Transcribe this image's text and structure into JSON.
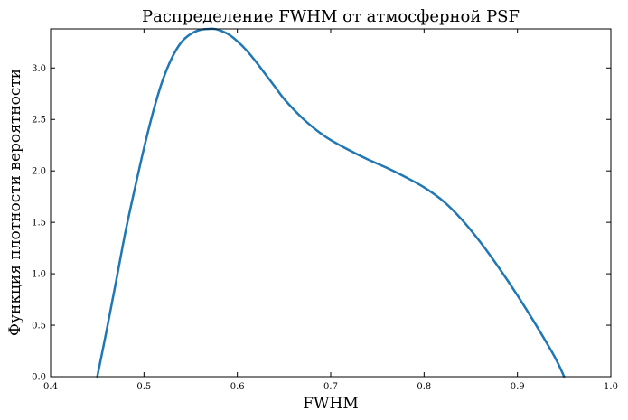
{
  "chart_data": {
    "type": "line",
    "title": "Распределение FWHM от атмосферной PSF",
    "xlabel": "FWHM",
    "ylabel": "Функция плотности вероятности",
    "xlim": [
      0.4,
      1.0
    ],
    "ylim": [
      0.0,
      3.38
    ],
    "xticks": [
      "0.4",
      "0.5",
      "0.6",
      "0.7",
      "0.8",
      "0.9",
      "1.0"
    ],
    "yticks": [
      "0.0",
      "0.5",
      "1.0",
      "1.5",
      "2.0",
      "2.5",
      "3.0"
    ],
    "grid": false,
    "line_color": "#1f77b4",
    "series": [
      {
        "x": [
          0.45,
          0.46,
          0.47,
          0.48,
          0.49,
          0.5,
          0.51,
          0.52,
          0.53,
          0.54,
          0.55,
          0.56,
          0.57,
          0.575,
          0.58,
          0.59,
          0.6,
          0.61,
          0.62,
          0.63,
          0.64,
          0.65,
          0.66,
          0.67,
          0.68,
          0.69,
          0.7,
          0.72,
          0.74,
          0.76,
          0.78,
          0.8,
          0.82,
          0.84,
          0.86,
          0.88,
          0.9,
          0.92,
          0.94,
          0.95
        ],
        "y": [
          0.0,
          0.45,
          0.92,
          1.4,
          1.82,
          2.22,
          2.58,
          2.88,
          3.1,
          3.25,
          3.33,
          3.37,
          3.38,
          3.38,
          3.37,
          3.33,
          3.26,
          3.17,
          3.06,
          2.94,
          2.82,
          2.7,
          2.6,
          2.51,
          2.43,
          2.36,
          2.3,
          2.2,
          2.11,
          2.03,
          1.94,
          1.84,
          1.71,
          1.53,
          1.31,
          1.06,
          0.79,
          0.5,
          0.19,
          0.0
        ]
      }
    ]
  }
}
